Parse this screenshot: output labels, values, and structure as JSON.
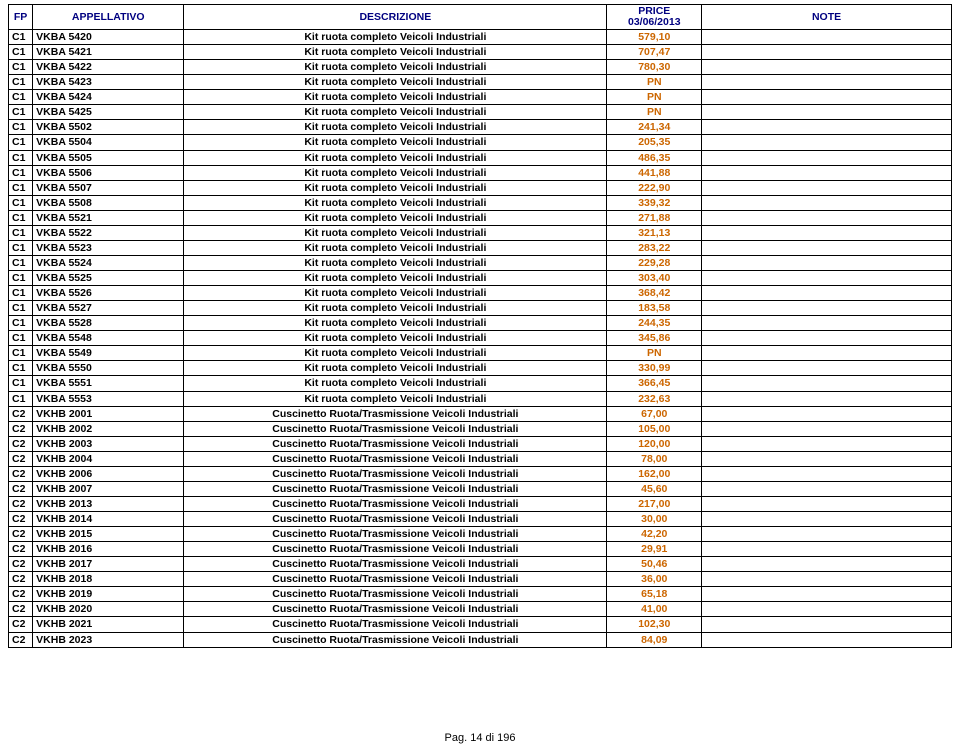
{
  "header": {
    "fp": "FP",
    "appellativo": "APPELLATIVO",
    "descrizione": "DESCRIZIONE",
    "price_line1": "PRICE",
    "price_line2": "03/06/2013",
    "note": "NOTE"
  },
  "colors": {
    "header_text": "#000080",
    "price_text": "#cc6600",
    "border": "#000000",
    "background": "#ffffff"
  },
  "fonts": {
    "family": "Arial",
    "cell_size_pt": 8,
    "weight": "bold"
  },
  "pager": "Pag. 14 di 196",
  "rows": [
    {
      "fp": "C1",
      "app": "VKBA 5420",
      "desc": "Kit ruota completo Veicoli Industriali",
      "price": "579,10",
      "note": ""
    },
    {
      "fp": "C1",
      "app": "VKBA 5421",
      "desc": "Kit ruota completo Veicoli Industriali",
      "price": "707,47",
      "note": ""
    },
    {
      "fp": "C1",
      "app": "VKBA 5422",
      "desc": "Kit ruota completo Veicoli Industriali",
      "price": "780,30",
      "note": ""
    },
    {
      "fp": "C1",
      "app": "VKBA 5423",
      "desc": "Kit ruota completo Veicoli Industriali",
      "price": "PN",
      "note": ""
    },
    {
      "fp": "C1",
      "app": "VKBA 5424",
      "desc": "Kit ruota completo Veicoli Industriali",
      "price": "PN",
      "note": ""
    },
    {
      "fp": "C1",
      "app": "VKBA 5425",
      "desc": "Kit ruota completo Veicoli Industriali",
      "price": "PN",
      "note": ""
    },
    {
      "fp": "C1",
      "app": "VKBA 5502",
      "desc": "Kit ruota completo Veicoli Industriali",
      "price": "241,34",
      "note": ""
    },
    {
      "fp": "C1",
      "app": "VKBA 5504",
      "desc": "Kit ruota completo Veicoli Industriali",
      "price": "205,35",
      "note": ""
    },
    {
      "fp": "C1",
      "app": "VKBA 5505",
      "desc": "Kit ruota completo Veicoli Industriali",
      "price": "486,35",
      "note": ""
    },
    {
      "fp": "C1",
      "app": "VKBA 5506",
      "desc": "Kit ruota completo Veicoli Industriali",
      "price": "441,88",
      "note": ""
    },
    {
      "fp": "C1",
      "app": "VKBA 5507",
      "desc": "Kit ruota completo Veicoli Industriali",
      "price": "222,90",
      "note": ""
    },
    {
      "fp": "C1",
      "app": "VKBA 5508",
      "desc": "Kit ruota completo Veicoli Industriali",
      "price": "339,32",
      "note": ""
    },
    {
      "fp": "C1",
      "app": "VKBA 5521",
      "desc": "Kit ruota completo Veicoli Industriali",
      "price": "271,88",
      "note": ""
    },
    {
      "fp": "C1",
      "app": "VKBA 5522",
      "desc": "Kit ruota completo Veicoli Industriali",
      "price": "321,13",
      "note": ""
    },
    {
      "fp": "C1",
      "app": "VKBA 5523",
      "desc": "Kit ruota completo Veicoli Industriali",
      "price": "283,22",
      "note": ""
    },
    {
      "fp": "C1",
      "app": "VKBA 5524",
      "desc": "Kit ruota completo Veicoli Industriali",
      "price": "229,28",
      "note": ""
    },
    {
      "fp": "C1",
      "app": "VKBA 5525",
      "desc": "Kit ruota completo Veicoli Industriali",
      "price": "303,40",
      "note": ""
    },
    {
      "fp": "C1",
      "app": "VKBA 5526",
      "desc": "Kit ruota completo Veicoli Industriali",
      "price": "368,42",
      "note": ""
    },
    {
      "fp": "C1",
      "app": "VKBA 5527",
      "desc": "Kit ruota completo Veicoli Industriali",
      "price": "183,58",
      "note": ""
    },
    {
      "fp": "C1",
      "app": "VKBA 5528",
      "desc": "Kit ruota completo Veicoli Industriali",
      "price": "244,35",
      "note": ""
    },
    {
      "fp": "C1",
      "app": "VKBA 5548",
      "desc": "Kit ruota completo Veicoli Industriali",
      "price": "345,86",
      "note": ""
    },
    {
      "fp": "C1",
      "app": "VKBA 5549",
      "desc": "Kit ruota completo Veicoli Industriali",
      "price": "PN",
      "note": ""
    },
    {
      "fp": "C1",
      "app": "VKBA 5550",
      "desc": "Kit ruota completo Veicoli Industriali",
      "price": "330,99",
      "note": ""
    },
    {
      "fp": "C1",
      "app": "VKBA 5551",
      "desc": "Kit ruota completo Veicoli Industriali",
      "price": "366,45",
      "note": ""
    },
    {
      "fp": "C1",
      "app": "VKBA 5553",
      "desc": "Kit ruota completo Veicoli Industriali",
      "price": "232,63",
      "note": ""
    },
    {
      "fp": "C2",
      "app": "VKHB 2001",
      "desc": "Cuscinetto Ruota/Trasmissione Veicoli Industriali",
      "price": "67,00",
      "note": ""
    },
    {
      "fp": "C2",
      "app": "VKHB 2002",
      "desc": "Cuscinetto Ruota/Trasmissione Veicoli Industriali",
      "price": "105,00",
      "note": ""
    },
    {
      "fp": "C2",
      "app": "VKHB 2003",
      "desc": "Cuscinetto Ruota/Trasmissione Veicoli Industriali",
      "price": "120,00",
      "note": ""
    },
    {
      "fp": "C2",
      "app": "VKHB 2004",
      "desc": "Cuscinetto Ruota/Trasmissione Veicoli Industriali",
      "price": "78,00",
      "note": ""
    },
    {
      "fp": "C2",
      "app": "VKHB 2006",
      "desc": "Cuscinetto Ruota/Trasmissione Veicoli Industriali",
      "price": "162,00",
      "note": ""
    },
    {
      "fp": "C2",
      "app": "VKHB 2007",
      "desc": "Cuscinetto Ruota/Trasmissione Veicoli Industriali",
      "price": "45,60",
      "note": ""
    },
    {
      "fp": "C2",
      "app": "VKHB 2013",
      "desc": "Cuscinetto Ruota/Trasmissione Veicoli Industriali",
      "price": "217,00",
      "note": ""
    },
    {
      "fp": "C2",
      "app": "VKHB 2014",
      "desc": "Cuscinetto Ruota/Trasmissione Veicoli Industriali",
      "price": "30,00",
      "note": ""
    },
    {
      "fp": "C2",
      "app": "VKHB 2015",
      "desc": "Cuscinetto Ruota/Trasmissione Veicoli Industriali",
      "price": "42,20",
      "note": ""
    },
    {
      "fp": "C2",
      "app": "VKHB 2016",
      "desc": "Cuscinetto Ruota/Trasmissione Veicoli Industriali",
      "price": "29,91",
      "note": ""
    },
    {
      "fp": "C2",
      "app": "VKHB 2017",
      "desc": "Cuscinetto Ruota/Trasmissione Veicoli Industriali",
      "price": "50,46",
      "note": ""
    },
    {
      "fp": "C2",
      "app": "VKHB 2018",
      "desc": "Cuscinetto Ruota/Trasmissione Veicoli Industriali",
      "price": "36,00",
      "note": ""
    },
    {
      "fp": "C2",
      "app": "VKHB 2019",
      "desc": "Cuscinetto Ruota/Trasmissione Veicoli Industriali",
      "price": "65,18",
      "note": ""
    },
    {
      "fp": "C2",
      "app": "VKHB 2020",
      "desc": "Cuscinetto Ruota/Trasmissione Veicoli Industriali",
      "price": "41,00",
      "note": ""
    },
    {
      "fp": "C2",
      "app": "VKHB 2021",
      "desc": "Cuscinetto Ruota/Trasmissione Veicoli Industriali",
      "price": "102,30",
      "note": ""
    },
    {
      "fp": "C2",
      "app": "VKHB 2023",
      "desc": "Cuscinetto Ruota/Trasmissione Veicoli Industriali",
      "price": "84,09",
      "note": ""
    }
  ]
}
